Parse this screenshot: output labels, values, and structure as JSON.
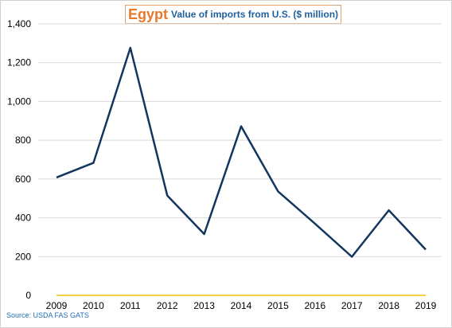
{
  "header": {
    "country": "Egypt",
    "subtitle": "Value of imports from U.S. ($ million)"
  },
  "source": "Source: USDA FAS GATS",
  "chart_data": {
    "type": "line",
    "title": "Egypt Value of imports from U.S. ($ million)",
    "xlabel": "",
    "ylabel": "",
    "x": [
      "2009",
      "2010",
      "2011",
      "2012",
      "2013",
      "2014",
      "2015",
      "2016",
      "2017",
      "2018",
      "2019"
    ],
    "series": [
      {
        "values": [
          608,
          683,
          1277,
          515,
          316,
          872,
          536,
          370,
          199,
          439,
          236
        ],
        "color": "#12365f"
      },
      {
        "values": [
          0,
          0,
          0,
          0,
          0,
          0,
          0,
          0,
          0,
          0,
          0
        ],
        "color": "#f2c300"
      }
    ],
    "ylim": [
      0,
      1400
    ],
    "yticks": [
      0,
      200,
      400,
      600,
      800,
      1000,
      1200,
      1400
    ],
    "ytick_labels": [
      "0",
      "200",
      "400",
      "600",
      "800",
      "1,000",
      "1,200",
      "1,400"
    ],
    "grid": true,
    "gridline_color": "#d9d9d9",
    "legend": "none"
  }
}
